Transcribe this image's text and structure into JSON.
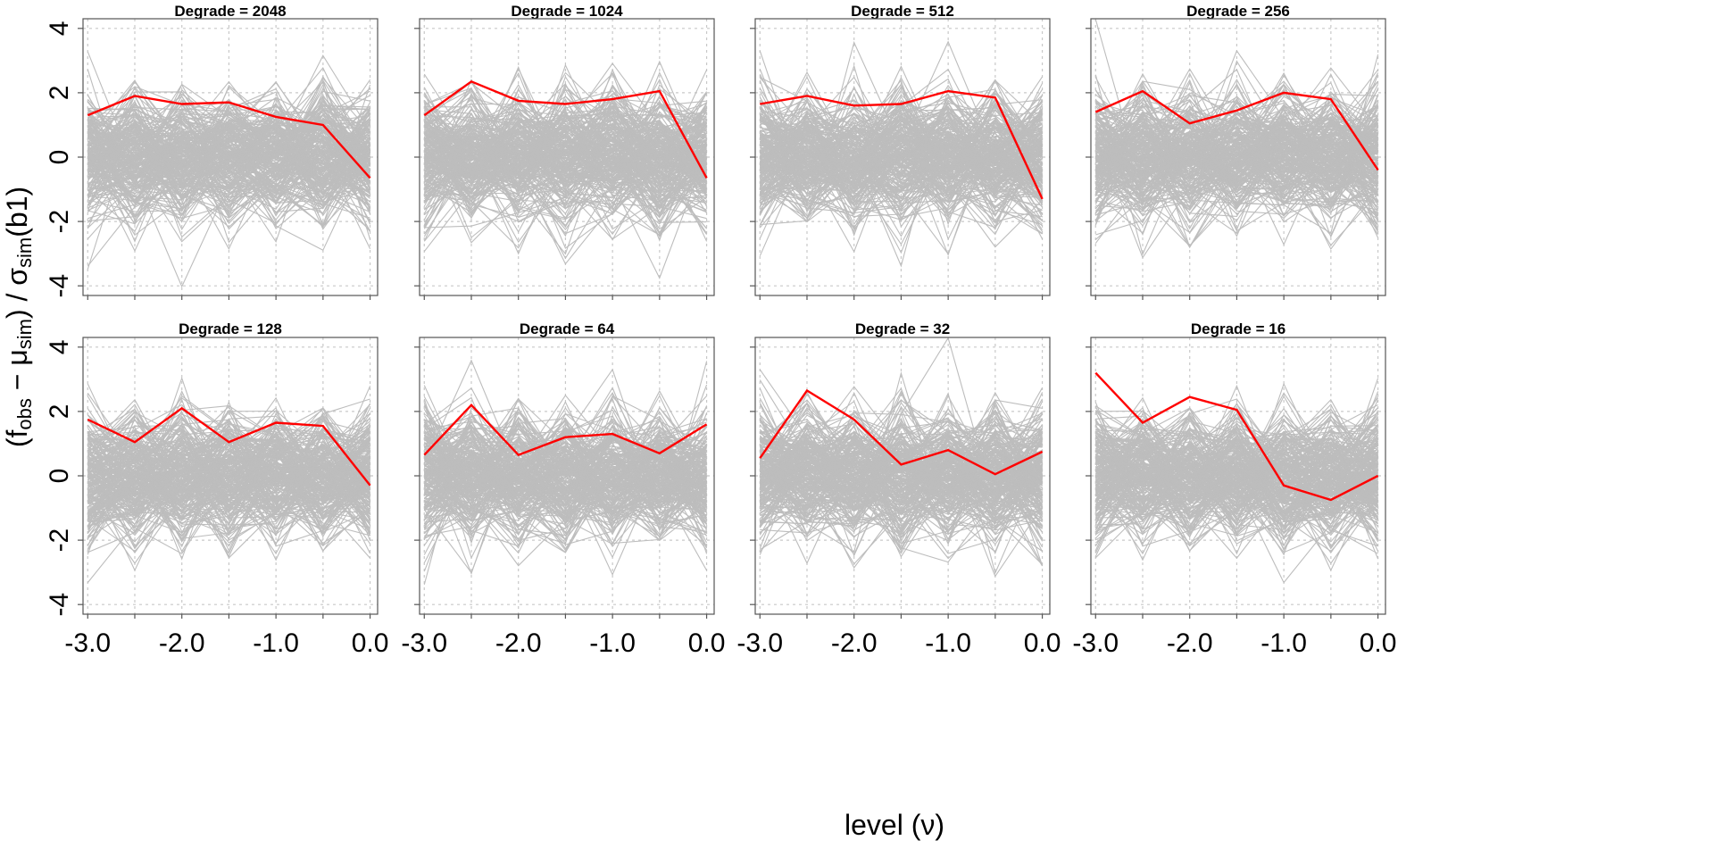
{
  "chart_data": {
    "type": "line",
    "xlabel": "level (ν)",
    "ylabel": {
      "open": "(f",
      "obs_sub": "obs",
      "minus": " − μ",
      "sim_sub": "sim",
      "close": ") / σ",
      "sim_sub2": "sim",
      "tail": "(b1)"
    },
    "x": [
      -3.0,
      -2.5,
      -2.0,
      -1.5,
      -1.0,
      -0.5,
      0.0
    ],
    "x_ticks": [
      "-3.0",
      "-2.0",
      "-1.0",
      "0.0"
    ],
    "x_tick_values": [
      -3.0,
      -2.0,
      -1.0,
      0.0
    ],
    "xlim": [
      -3.05,
      0.08
    ],
    "y_ticks": [
      "-4",
      "-2",
      "0",
      "2",
      "4"
    ],
    "y_tick_values": [
      -4,
      -2,
      0,
      2,
      4
    ],
    "ylim": [
      -4.3,
      4.3
    ],
    "grid": true,
    "simulated_series_name": "simulations (grey)",
    "simulated_series_count": 250,
    "simulated_spread_sd": [
      1.0,
      1.0,
      1.0,
      1.0,
      1.0,
      1.0,
      1.0,
      1.0
    ],
    "panels": [
      {
        "title": "Degrade = 2048",
        "observed": [
          1.3,
          1.9,
          1.65,
          1.7,
          1.25,
          1.0,
          -0.65
        ]
      },
      {
        "title": "Degrade = 1024",
        "observed": [
          1.3,
          2.35,
          1.75,
          1.65,
          1.8,
          2.05,
          -0.65
        ]
      },
      {
        "title": "Degrade = 512",
        "observed": [
          1.65,
          1.9,
          1.6,
          1.65,
          2.05,
          1.85,
          -1.3
        ]
      },
      {
        "title": "Degrade = 256",
        "observed": [
          1.4,
          2.05,
          1.05,
          1.45,
          2.0,
          1.8,
          -0.4
        ]
      },
      {
        "title": "Degrade = 128",
        "observed": [
          1.75,
          1.05,
          2.1,
          1.05,
          1.65,
          1.55,
          -0.3
        ]
      },
      {
        "title": "Degrade = 64",
        "observed": [
          0.65,
          2.2,
          0.65,
          1.2,
          1.3,
          0.7,
          1.6
        ]
      },
      {
        "title": "Degrade = 32",
        "observed": [
          0.55,
          2.65,
          1.75,
          0.35,
          0.8,
          0.05,
          0.75
        ]
      },
      {
        "title": "Degrade = 16",
        "observed": [
          3.2,
          1.65,
          2.45,
          2.05,
          -0.3,
          -0.75,
          0.0
        ]
      }
    ]
  }
}
